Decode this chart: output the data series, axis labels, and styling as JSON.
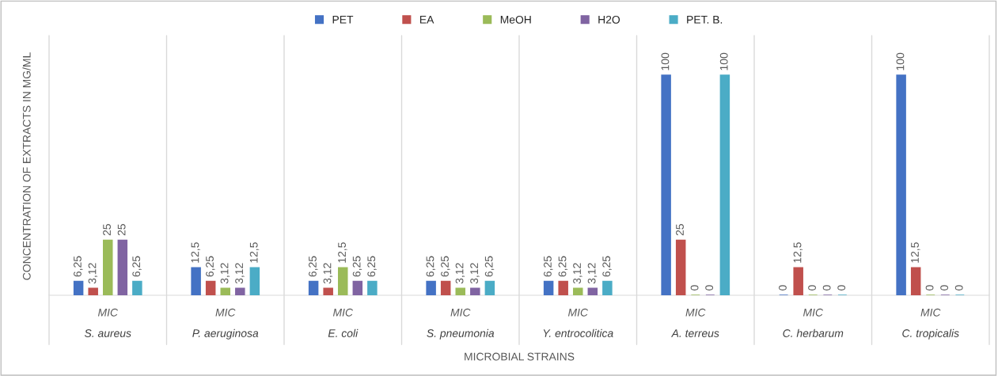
{
  "chart_data": {
    "type": "bar",
    "xlabel": "MICROBIAL STRAINS",
    "ylabel": "CONCENTRATION OF EXTRACTS IN MG/ML",
    "categories": [
      "S. aureus",
      "P. aeruginosa",
      "E. coli",
      "S. pneumonia",
      "Y. entrocolitica",
      "A. terreus",
      "C. herbarum",
      "C. tropicalis"
    ],
    "annotations": [
      "MIC",
      "MIC",
      "MIC",
      "MIC",
      "MIC",
      "MIC",
      "MIC",
      "MIC"
    ],
    "ylim": [
      0,
      118
    ],
    "grid": "x",
    "legend": "top",
    "series": [
      {
        "name": "PET",
        "color": "#4472c4",
        "values": [
          6.25,
          12.5,
          6.25,
          6.25,
          6.25,
          100,
          0,
          100
        ],
        "value_labels": [
          "6,25",
          "12,5",
          "6,25",
          "6,25",
          "6,25",
          "100",
          "0",
          "100"
        ]
      },
      {
        "name": "EA",
        "color": "#c0504d",
        "values": [
          3.12,
          6.25,
          3.12,
          6.25,
          6.25,
          25,
          12.5,
          12.5
        ],
        "value_labels": [
          "3,12",
          "6,25",
          "3,12",
          "6,25",
          "6,25",
          "25",
          "12,5",
          "12,5"
        ]
      },
      {
        "name": "MeOH",
        "color": "#9bbb59",
        "values": [
          25,
          3.12,
          12.5,
          3.12,
          3.12,
          0,
          0,
          0
        ],
        "value_labels": [
          "25",
          "3,12",
          "12,5",
          "3,12",
          "3,12",
          "0",
          "0",
          "0"
        ]
      },
      {
        "name": "H2O",
        "color": "#8064a2",
        "values": [
          25,
          3.12,
          6.25,
          3.12,
          3.12,
          0,
          0,
          0
        ],
        "value_labels": [
          "25",
          "3,12",
          "6,25",
          "3,12",
          "3,12",
          "0",
          "0",
          "0"
        ]
      },
      {
        "name": "PET. B.",
        "color": "#4bacc6",
        "values": [
          6.25,
          12.5,
          6.25,
          6.25,
          6.25,
          100,
          0,
          0
        ],
        "value_labels": [
          "6,25",
          "12,5",
          "6,25",
          "6,25",
          "6,25",
          "100",
          "0",
          "0"
        ]
      }
    ]
  }
}
